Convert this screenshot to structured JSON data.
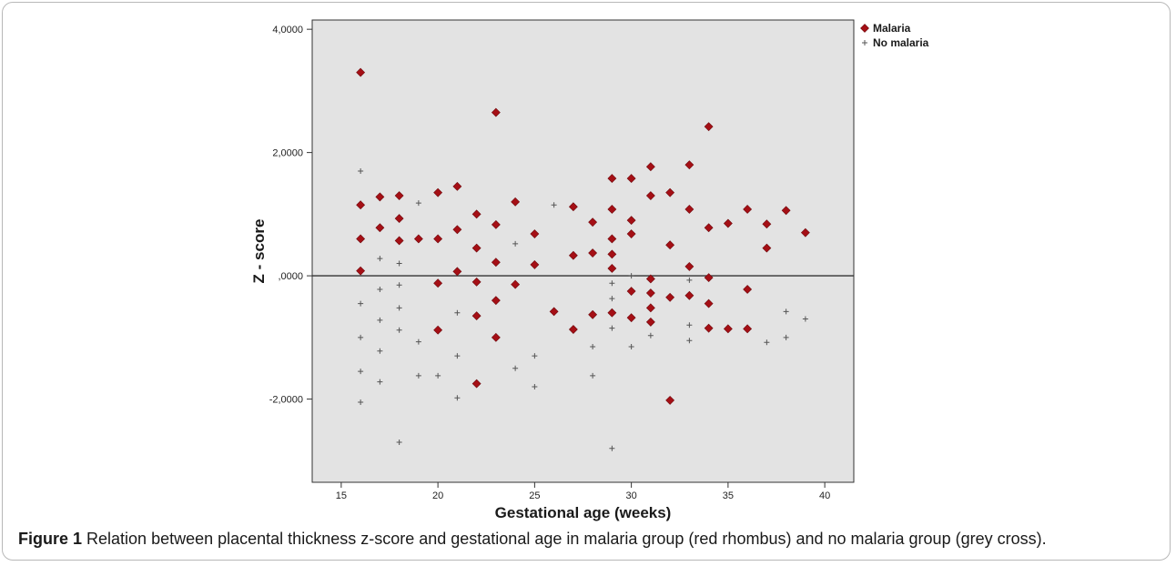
{
  "caption": {
    "label": "Figure 1",
    "text": "Relation between placental thickness z-score and gestational age in malaria group (red rhombus) and no malaria group (grey cross)."
  },
  "colors": {
    "plot_bg": "#e3e3e3",
    "malaria": "#a50f15",
    "no_malaria": "#555555"
  },
  "chart_data": {
    "type": "scatter",
    "xlabel": "Gestational age (weeks)",
    "ylabel": "Z - score",
    "xlim": [
      13.5,
      41.5
    ],
    "ylim": [
      -3.35,
      4.15
    ],
    "x_ticks": [
      15,
      20,
      25,
      30,
      35,
      40
    ],
    "x_tick_labels": [
      "15",
      "20",
      "25",
      "30",
      "35",
      "40"
    ],
    "y_ticks": [
      4,
      2,
      0,
      -2
    ],
    "y_tick_labels": [
      "4,0000",
      "2,0000",
      ",0000",
      "-2,0000"
    ],
    "reference_line_y": 0,
    "grid": false,
    "legend_position": "top-right",
    "series": [
      {
        "name": "Malaria",
        "marker": "diamond",
        "color": "#a50f15",
        "points": [
          [
            16,
            3.3
          ],
          [
            16,
            1.15
          ],
          [
            16,
            0.6
          ],
          [
            16,
            0.08
          ],
          [
            17,
            1.28
          ],
          [
            17,
            0.78
          ],
          [
            18,
            1.3
          ],
          [
            18,
            0.93
          ],
          [
            18,
            0.57
          ],
          [
            19,
            0.6
          ],
          [
            20,
            1.35
          ],
          [
            20,
            0.6
          ],
          [
            20,
            -0.12
          ],
          [
            20,
            -0.88
          ],
          [
            21,
            1.45
          ],
          [
            21,
            0.75
          ],
          [
            21,
            0.07
          ],
          [
            22,
            1.0
          ],
          [
            22,
            0.45
          ],
          [
            22,
            -0.1
          ],
          [
            22,
            -0.65
          ],
          [
            22,
            -1.75
          ],
          [
            23,
            2.65
          ],
          [
            23,
            0.83
          ],
          [
            23,
            0.22
          ],
          [
            23,
            -0.4
          ],
          [
            23,
            -1.0
          ],
          [
            24,
            1.2
          ],
          [
            24,
            -0.14
          ],
          [
            25,
            0.68
          ],
          [
            25,
            0.18
          ],
          [
            26,
            -0.58
          ],
          [
            27,
            1.12
          ],
          [
            27,
            0.33
          ],
          [
            27,
            -0.87
          ],
          [
            28,
            0.87
          ],
          [
            28,
            0.37
          ],
          [
            28,
            -0.63
          ],
          [
            29,
            1.58
          ],
          [
            29,
            1.08
          ],
          [
            29,
            0.6
          ],
          [
            29,
            0.35
          ],
          [
            29,
            0.12
          ],
          [
            29,
            -0.6
          ],
          [
            30,
            1.58
          ],
          [
            30,
            0.9
          ],
          [
            30,
            0.68
          ],
          [
            30,
            -0.25
          ],
          [
            30,
            -0.68
          ],
          [
            31,
            1.77
          ],
          [
            31,
            1.3
          ],
          [
            31,
            -0.05
          ],
          [
            31,
            -0.28
          ],
          [
            31,
            -0.52
          ],
          [
            31,
            -0.75
          ],
          [
            32,
            1.35
          ],
          [
            32,
            0.5
          ],
          [
            32,
            -0.35
          ],
          [
            32,
            -2.02
          ],
          [
            33,
            1.8
          ],
          [
            33,
            1.08
          ],
          [
            33,
            0.15
          ],
          [
            33,
            -0.32
          ],
          [
            34,
            2.42
          ],
          [
            34,
            0.78
          ],
          [
            34,
            -0.03
          ],
          [
            34,
            -0.45
          ],
          [
            34,
            -0.85
          ],
          [
            35,
            0.85
          ],
          [
            35,
            -0.86
          ],
          [
            36,
            1.08
          ],
          [
            36,
            -0.22
          ],
          [
            36,
            -0.86
          ],
          [
            37,
            0.84
          ],
          [
            37,
            0.45
          ],
          [
            38,
            1.06
          ],
          [
            39,
            0.7
          ]
        ]
      },
      {
        "name": "No malaria",
        "marker": "cross",
        "color": "#555555",
        "points": [
          [
            16,
            1.7
          ],
          [
            16,
            -0.45
          ],
          [
            16,
            -1.0
          ],
          [
            16,
            -1.55
          ],
          [
            16,
            -2.05
          ],
          [
            17,
            0.28
          ],
          [
            17,
            -0.22
          ],
          [
            17,
            -0.72
          ],
          [
            17,
            -1.22
          ],
          [
            17,
            -1.72
          ],
          [
            18,
            0.2
          ],
          [
            18,
            -0.15
          ],
          [
            18,
            -0.52
          ],
          [
            18,
            -0.88
          ],
          [
            18,
            -2.7
          ],
          [
            19,
            1.18
          ],
          [
            19,
            -1.07
          ],
          [
            19,
            -1.62
          ],
          [
            20,
            -1.62
          ],
          [
            21,
            -0.6
          ],
          [
            21,
            -1.3
          ],
          [
            21,
            -1.98
          ],
          [
            24,
            0.52
          ],
          [
            24,
            -1.5
          ],
          [
            25,
            -1.3
          ],
          [
            25,
            -1.8
          ],
          [
            26,
            1.15
          ],
          [
            28,
            -1.15
          ],
          [
            28,
            -1.62
          ],
          [
            29,
            -0.12
          ],
          [
            29,
            -0.37
          ],
          [
            29,
            -0.85
          ],
          [
            29,
            -2.8
          ],
          [
            30,
            0.0
          ],
          [
            30,
            -1.15
          ],
          [
            31,
            -0.97
          ],
          [
            33,
            -0.07
          ],
          [
            33,
            -0.8
          ],
          [
            33,
            -1.05
          ],
          [
            37,
            -1.08
          ],
          [
            38,
            -0.58
          ],
          [
            38,
            -1.0
          ],
          [
            39,
            -0.7
          ]
        ]
      }
    ]
  }
}
